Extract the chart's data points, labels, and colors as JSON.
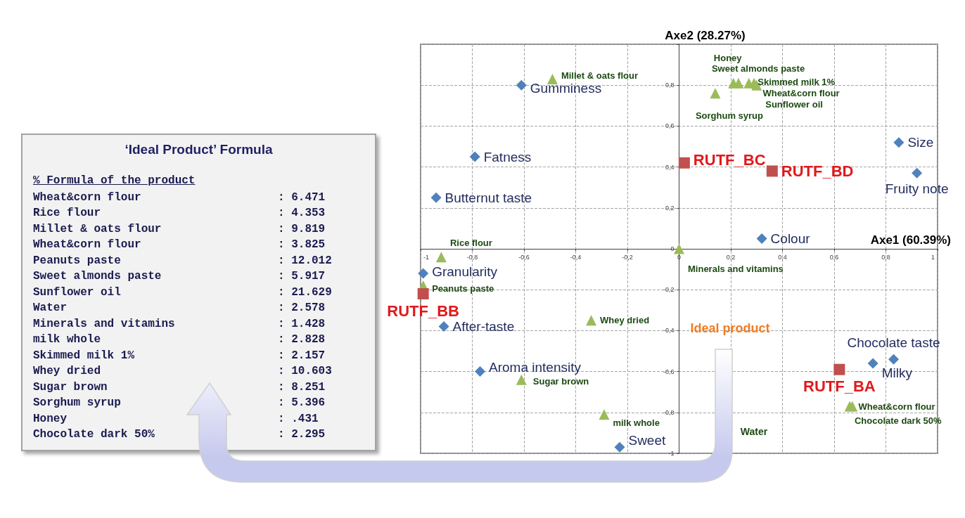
{
  "chart_data": [
    {
      "type": "scatter",
      "xlabel": "Axe1 (60.39%)",
      "ylabel": "Axe2 (28.27%)",
      "xlim": [
        -1,
        1
      ],
      "ylim": [
        -1,
        1
      ],
      "xticks": [
        -1,
        {
          "value": -0.8,
          "label": "-0,8"
        },
        {
          "value": -0.6,
          "label": "-0,6"
        },
        {
          "value": -0.4,
          "label": "-0,4"
        },
        {
          "value": -0.2,
          "label": "-0,2"
        },
        0,
        {
          "value": 0.2,
          "label": "0,2"
        },
        {
          "value": 0.4,
          "label": "0,4"
        },
        {
          "value": 0.6,
          "label": "0,6"
        },
        {
          "value": 0.8,
          "label": "0,8"
        },
        1
      ],
      "yticks": [
        -1,
        {
          "value": -0.8,
          "label": "-0,8"
        },
        {
          "value": -0.6,
          "label": "-0,6"
        },
        {
          "value": -0.4,
          "label": "-0,4"
        },
        {
          "value": -0.2,
          "label": "-0,2"
        },
        0,
        {
          "value": 0.2,
          "label": "0,2"
        },
        {
          "value": 0.4,
          "label": "0,4"
        },
        {
          "value": 0.6,
          "label": "0,6"
        },
        {
          "value": 0.8,
          "label": "0,8"
        },
        {
          "value": 1,
          "label": null
        }
      ],
      "grid": true,
      "series": [
        {
          "color": "#4f81bd",
          "marker": "diamond",
          "x": [
            -0.61,
            -0.79,
            -0.94,
            -0.99,
            -0.91,
            -0.77,
            -0.23,
            0.32,
            0.85,
            0.92,
            0.83,
            0.75
          ],
          "values": [
            0.8,
            0.45,
            0.25,
            -0.12,
            -0.38,
            -0.6,
            -0.97,
            0.05,
            0.52,
            0.37,
            -0.54,
            -0.56
          ],
          "value_labels": [
            "Gumminess",
            "Fatness",
            "Butternut taste",
            "Granularity",
            "After-taste",
            "Aroma intensity",
            "Sweet",
            "Colour",
            "Size",
            "Fruity note",
            "Chocolate taste",
            "Milky"
          ]
        },
        {
          "color": "#9bbb59",
          "marker": "triangle",
          "x": [
            -0.49,
            -0.92,
            -0.99,
            -0.34,
            -0.61,
            -0.29,
            0,
            0.21,
            0.23,
            0.27,
            0.29,
            0.3,
            0.14,
            0.66,
            0.67
          ],
          "values": [
            0.83,
            -0.04,
            -0.18,
            -0.35,
            -0.64,
            -0.81,
            0,
            0.81,
            0.81,
            0.81,
            0.81,
            0.8,
            0.76,
            -0.77,
            -0.77
          ],
          "value_labels": [
            "Millet & oats flour",
            "Rice flour",
            "Peanuts paste",
            "Whey dried",
            "Sugar brown",
            "milk whole",
            "Minerals and vitamins",
            "Honey",
            "Sweet almonds paste",
            "Skimmed milk 1%",
            "Wheat&corn flour",
            "Sunflower oil",
            "Sorghum syrup",
            "Wheat&corn flour",
            "Chocolate dark 50%"
          ]
        },
        {
          "color": "#c0504d",
          "marker": "square",
          "x": [
            0.02,
            0.36,
            -0.99,
            0.62
          ],
          "values": [
            0.42,
            0.38,
            -0.22,
            -0.59
          ],
          "value_labels": [
            "RUTF_BC",
            "RUTF_BD",
            "RUTF_BB",
            "RUTF_BA"
          ]
        }
      ],
      "annotations": [
        "Ideal product",
        "Water"
      ]
    },
    {
      "type": "other",
      "title": "‘Ideal Product’ Formula",
      "subtitle": "% Formula of the product",
      "categories": [
        "Wheat&corn flour",
        "Rice flour",
        "Millet & oats flour",
        "Wheat&corn flour",
        "Peanuts paste",
        "Sweet almonds paste",
        "Sunflower oil",
        "Water",
        "Minerals and vitamins",
        "milk whole",
        "Skimmed milk 1%",
        "Whey dried",
        "Sugar brown",
        "Sorghum syrup",
        "Honey",
        "Chocolate dark 50%"
      ],
      "annotations": [
        ": 6.471",
        ": 4.353",
        ": 9.819",
        ": 3.825",
        ": 12.012",
        ": 5.917",
        ": 21.629",
        ": 2.578",
        ": 1.428",
        ": 2.828",
        ": 2.157",
        ": 10.603",
        ": 8.251",
        ": 5.396",
        ": .431",
        ": 2.295"
      ]
    }
  ]
}
